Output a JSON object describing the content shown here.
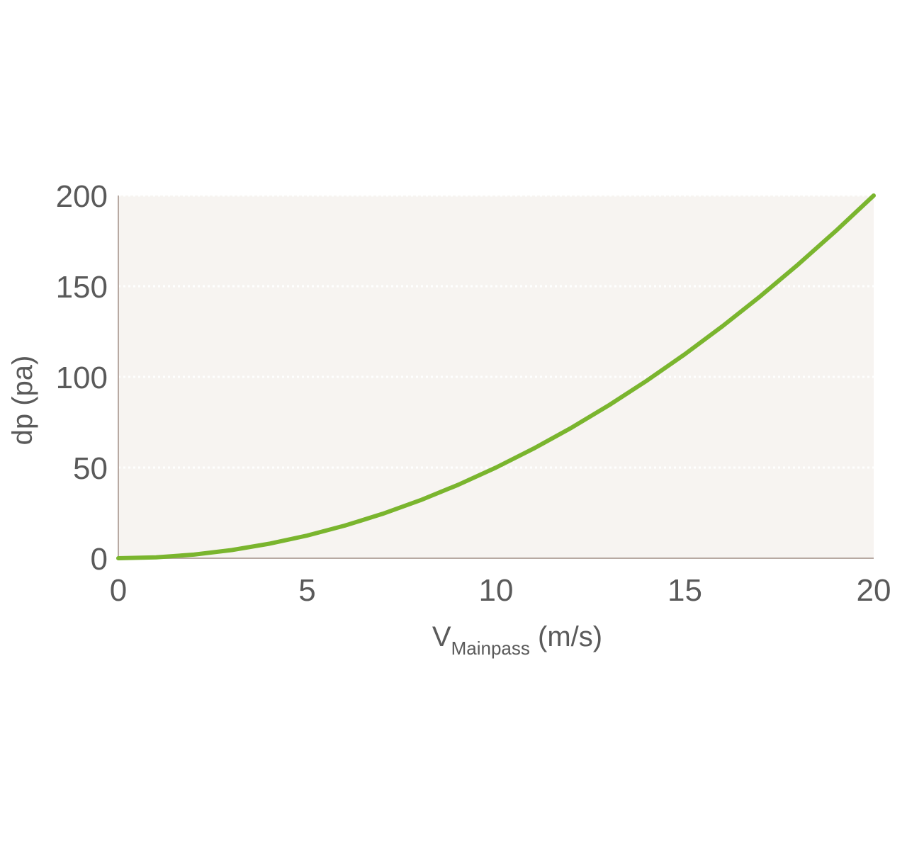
{
  "chart_data": {
    "type": "line",
    "xlabel": {
      "main": "V",
      "subscript": "Mainpass",
      "unit": " (m/s)"
    },
    "ylabel": "dp (pa)",
    "xlim": [
      0,
      20
    ],
    "ylim": [
      0,
      200
    ],
    "x_ticks": [
      "0",
      "5",
      "10",
      "15",
      "20"
    ],
    "y_ticks": [
      "0",
      "50",
      "100",
      "150",
      "200"
    ],
    "grid": "horizontal dotted",
    "legend": "none",
    "series": [
      {
        "x": [
          0,
          1,
          2,
          3,
          4,
          5,
          6,
          7,
          8,
          9,
          10,
          11,
          12,
          13,
          14,
          15,
          16,
          17,
          18,
          19,
          20
        ],
        "values": [
          0,
          0.5,
          2,
          4.5,
          8,
          12.5,
          18,
          24.5,
          32,
          40.5,
          50,
          60.5,
          72,
          84.5,
          98,
          112.5,
          128,
          144.5,
          162,
          180.5,
          200
        ]
      }
    ],
    "colors": {
      "line": "#7ab52e",
      "plot_background": "#f7f4f1",
      "grid": "#ffffff",
      "axis": "#b7a9a2",
      "text": "#5a5a5a"
    }
  }
}
